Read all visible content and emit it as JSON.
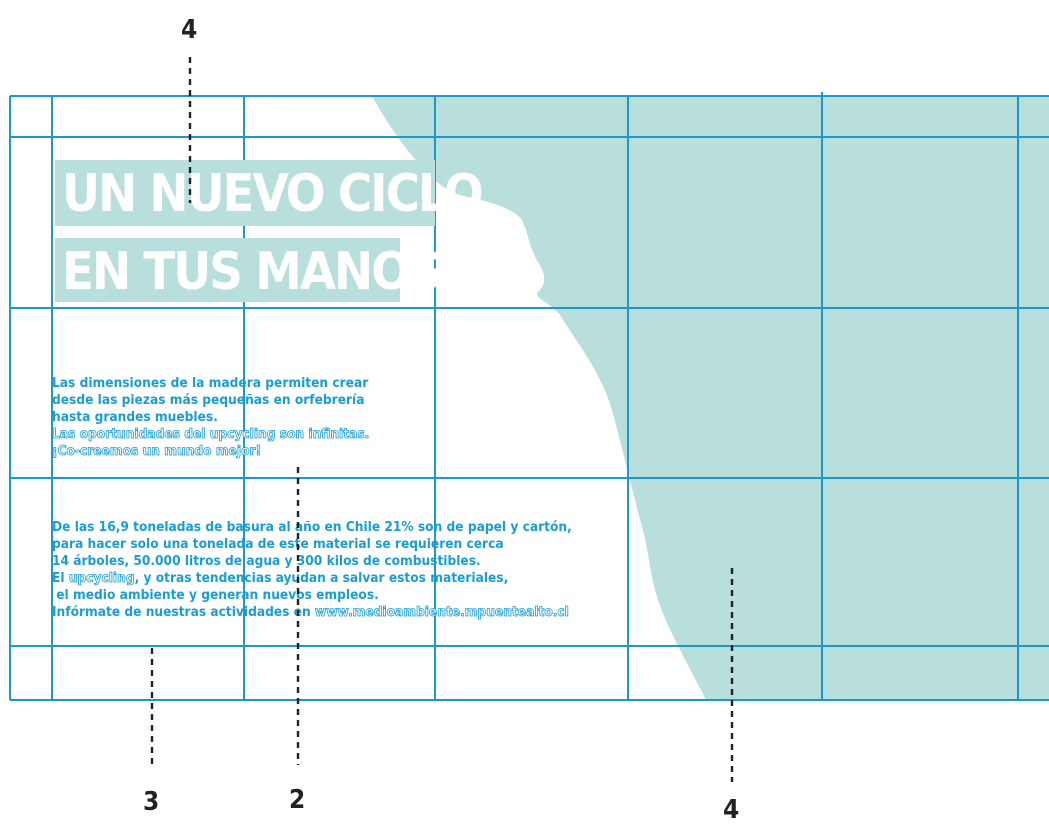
{
  "colors": {
    "grid": "#1c99c8",
    "shape": "#b9dfdc",
    "text": "#1a9ed2",
    "callout": "#222222"
  },
  "callouts": {
    "top": "4",
    "bottom_left": "3",
    "bottom_middle": "2",
    "bottom_right": "4"
  },
  "title": {
    "line1": "UN NUEVO CICLO",
    "line2": "EN TUS MANOS"
  },
  "paragraph1": {
    "line1": "Las dimensiones de la madera permiten crear",
    "line2": "desde las piezas más pequeñas en orfebrería",
    "line3": "hasta grandes muebles.",
    "line4": "Las oportunidades del upcycling son infinitas.",
    "line5": "¡Co-creemos un mundo mejor!"
  },
  "paragraph2": {
    "line1": "De las 16,9 toneladas de basura al año en Chile 21%  son de papel y cartón,",
    "line2": "para hacer solo una tonelada de este material se requieren cerca",
    "line3": "14 árboles, 50.000 litros de agua y 300 kilos de combustibles.",
    "line4_prefix": "El ",
    "line4_highlight": "upcycling",
    "line4_suffix": ", y otras tendencias ayudan a salvar estos materiales,",
    "line5": " el medio ambiente y generan nuevos empleos.",
    "line6_prefix": "Infórmate de nuestras actividades en ",
    "line6_link": "www.medioambiente.mpuentealto.cl"
  }
}
